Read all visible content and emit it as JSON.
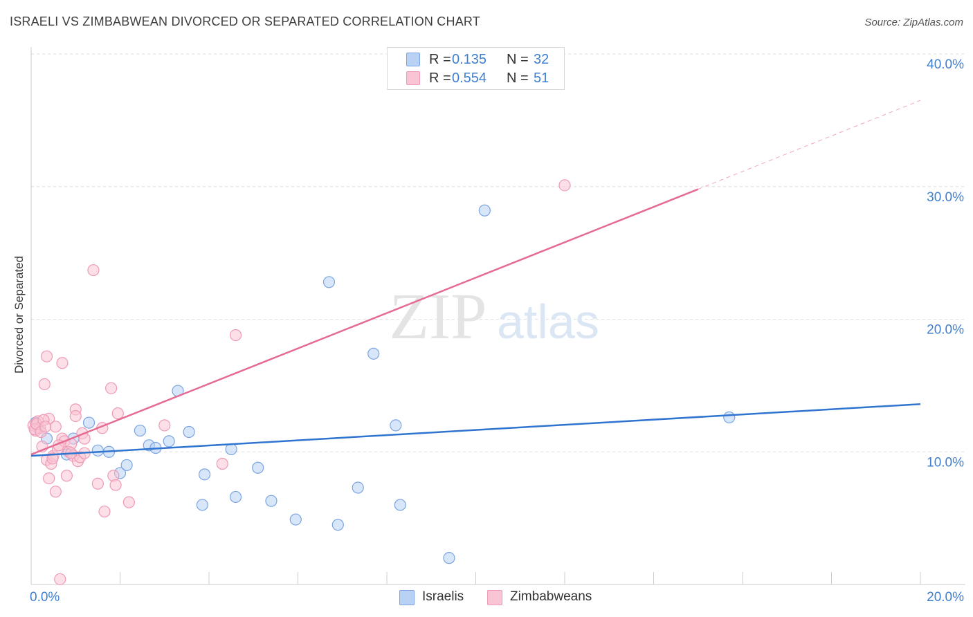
{
  "title": "ISRAELI VS ZIMBABWEAN DIVORCED OR SEPARATED CORRELATION CHART",
  "source": "Source: ZipAtlas.com",
  "watermark": {
    "zip": "ZIP",
    "atlas": "atlas"
  },
  "legend": {
    "rows": [
      {
        "r_label": "R =",
        "r_value": "0.135",
        "n_label": "N =",
        "n_value": "32",
        "fill": "#b8d1f5",
        "stroke": "#7ba4e0"
      },
      {
        "r_label": "R =",
        "r_value": "0.554",
        "n_label": "N =",
        "n_value": "51",
        "fill": "#f9c4d4",
        "stroke": "#ee9ab5"
      }
    ]
  },
  "bottom_legend": [
    {
      "label": "Israelis",
      "fill": "#b8d1f5",
      "stroke": "#7ba4e0"
    },
    {
      "label": "Zimbabweans",
      "fill": "#f9c4d4",
      "stroke": "#ee9ab5"
    }
  ],
  "axes": {
    "ylabel": "Divorced or Separated",
    "x_tick_labels": [
      {
        "value": 0,
        "label": "0.0%"
      },
      {
        "value": 20,
        "label": "20.0%"
      }
    ],
    "y_tick_labels": [
      {
        "value": 10,
        "label": "10.0%"
      },
      {
        "value": 20,
        "label": "20.0%"
      },
      {
        "value": 30,
        "label": "30.0%"
      },
      {
        "value": 40,
        "label": "40.0%"
      }
    ]
  },
  "colors": {
    "israelis_line": "#2f74cf",
    "zimbabweans_line": "#e56b92",
    "tick_label": "#3f7fcf",
    "grid": "#dedede",
    "axis": "#cccccc"
  },
  "chart_data": {
    "type": "scatter",
    "title": "ISRAELI VS ZIMBABWEAN DIVORCED OR SEPARATED CORRELATION CHART",
    "xlabel": "",
    "ylabel": "Divorced or Separated",
    "xlim": [
      0,
      20
    ],
    "ylim": [
      0,
      40
    ],
    "grid": true,
    "legend_position": "top-center",
    "series": [
      {
        "name": "Israelis",
        "color": "#7ba4e0",
        "points": [
          [
            0.1,
            12.2
          ],
          [
            0.15,
            11.8
          ],
          [
            0.35,
            11.0
          ],
          [
            0.8,
            9.8
          ],
          [
            0.95,
            11.0
          ],
          [
            1.3,
            12.2
          ],
          [
            1.5,
            10.1
          ],
          [
            1.75,
            10.0
          ],
          [
            2.0,
            8.4
          ],
          [
            2.15,
            9.0
          ],
          [
            2.45,
            11.6
          ],
          [
            2.65,
            10.5
          ],
          [
            2.8,
            10.3
          ],
          [
            3.1,
            10.8
          ],
          [
            3.3,
            14.6
          ],
          [
            3.55,
            11.5
          ],
          [
            3.85,
            6.0
          ],
          [
            3.9,
            8.3
          ],
          [
            4.5,
            10.2
          ],
          [
            4.6,
            6.6
          ],
          [
            5.1,
            8.8
          ],
          [
            5.4,
            6.3
          ],
          [
            5.95,
            4.9
          ],
          [
            6.7,
            22.8
          ],
          [
            6.9,
            4.5
          ],
          [
            7.35,
            7.3
          ],
          [
            7.7,
            17.4
          ],
          [
            8.2,
            12.0
          ],
          [
            8.3,
            6.0
          ],
          [
            9.4,
            2.0
          ],
          [
            10.2,
            28.2
          ],
          [
            15.7,
            12.6
          ]
        ]
      },
      {
        "name": "Zimbabweans",
        "color": "#ee9ab5",
        "points": [
          [
            0.05,
            12.0
          ],
          [
            0.1,
            11.6
          ],
          [
            0.15,
            12.3
          ],
          [
            0.2,
            11.8
          ],
          [
            0.25,
            10.4
          ],
          [
            0.3,
            15.1
          ],
          [
            0.35,
            17.2
          ],
          [
            0.35,
            9.4
          ],
          [
            0.4,
            8.0
          ],
          [
            0.4,
            12.5
          ],
          [
            0.45,
            9.1
          ],
          [
            0.5,
            9.7
          ],
          [
            0.55,
            7.0
          ],
          [
            0.55,
            11.9
          ],
          [
            0.6,
            10.2
          ],
          [
            0.65,
            0.4
          ],
          [
            0.7,
            11.0
          ],
          [
            0.7,
            16.7
          ],
          [
            0.75,
            10.8
          ],
          [
            0.8,
            8.2
          ],
          [
            0.85,
            10.0
          ],
          [
            0.9,
            10.6
          ],
          [
            0.95,
            9.7
          ],
          [
            1.0,
            13.2
          ],
          [
            1.0,
            12.7
          ],
          [
            1.05,
            9.3
          ],
          [
            1.1,
            9.6
          ],
          [
            1.15,
            11.4
          ],
          [
            1.2,
            11.0
          ],
          [
            1.2,
            9.9
          ],
          [
            1.4,
            23.7
          ],
          [
            1.5,
            7.6
          ],
          [
            1.6,
            11.8
          ],
          [
            1.65,
            5.5
          ],
          [
            1.8,
            14.8
          ],
          [
            1.85,
            8.2
          ],
          [
            1.9,
            7.5
          ],
          [
            1.95,
            12.9
          ],
          [
            2.2,
            6.2
          ],
          [
            3.0,
            12.0
          ],
          [
            4.3,
            9.1
          ],
          [
            4.6,
            18.8
          ],
          [
            12.0,
            30.1
          ],
          [
            0.08,
            11.7
          ],
          [
            0.12,
            12.1
          ],
          [
            0.22,
            11.5
          ],
          [
            0.28,
            12.4
          ],
          [
            0.32,
            11.9
          ],
          [
            0.48,
            9.5
          ],
          [
            0.62,
            10.5
          ],
          [
            0.9,
            9.9
          ]
        ]
      }
    ],
    "trendlines": [
      {
        "series": "Israelis",
        "x": [
          0,
          20
        ],
        "y": [
          9.7,
          13.6
        ],
        "style": "solid"
      },
      {
        "series": "Zimbabweans",
        "x": [
          0,
          15.0
        ],
        "y": [
          9.8,
          29.8
        ],
        "style": "solid"
      },
      {
        "series": "Zimbabweans",
        "x": [
          15.0,
          20
        ],
        "y": [
          29.8,
          36.5
        ],
        "style": "dashed"
      }
    ]
  }
}
